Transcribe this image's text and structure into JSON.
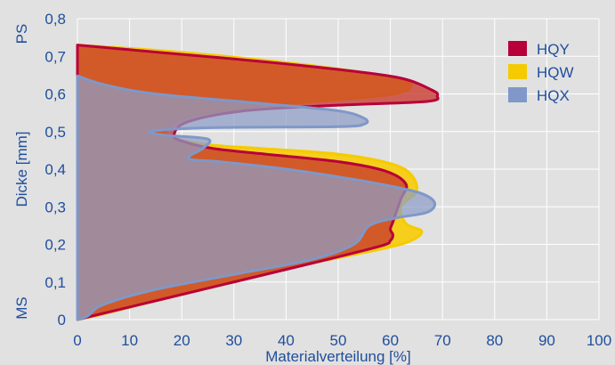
{
  "chart_data": {
    "type": "area",
    "title": "",
    "xlabel": "Materialverteilung [%]",
    "ylabel": "Dicke [mm]",
    "xlim": [
      0,
      100
    ],
    "ylim": [
      0,
      0.8
    ],
    "x_ticks": [
      "0",
      "10",
      "20",
      "30",
      "40",
      "50",
      "60",
      "70",
      "80",
      "90",
      "100"
    ],
    "y_ticks": [
      "0",
      "0,1",
      "0,2",
      "0,3",
      "0,4",
      "0,5",
      "0,6",
      "0,7",
      "0,8"
    ],
    "y_extra_labels": {
      "top": "PS",
      "bottom": "MS"
    },
    "grid": true,
    "legend_position": "top-right",
    "series": [
      {
        "name": "HQW",
        "color": "#f5cb00",
        "fill": "#f5cf1c",
        "points": [
          [
            0,
            0.73
          ],
          [
            16,
            0.715
          ],
          [
            32,
            0.695
          ],
          [
            48,
            0.67
          ],
          [
            60,
            0.645
          ],
          [
            64,
            0.622
          ],
          [
            60,
            0.598
          ],
          [
            45,
            0.58
          ],
          [
            30,
            0.56
          ],
          [
            20,
            0.535
          ],
          [
            17,
            0.505
          ],
          [
            18,
            0.485
          ],
          [
            25,
            0.465
          ],
          [
            35,
            0.455
          ],
          [
            50,
            0.44
          ],
          [
            60,
            0.415
          ],
          [
            64,
            0.385
          ],
          [
            65,
            0.34
          ],
          [
            62,
            0.3
          ],
          [
            63,
            0.255
          ],
          [
            66,
            0.235
          ],
          [
            64,
            0.21
          ],
          [
            59,
            0.19
          ],
          [
            45,
            0.15
          ],
          [
            30,
            0.1
          ],
          [
            15,
            0.05
          ],
          [
            5,
            0.015
          ],
          [
            0,
            0
          ]
        ]
      },
      {
        "name": "HQY",
        "color": "#b7003a",
        "fill": "#c8382c",
        "points": [
          [
            0,
            0.73
          ],
          [
            16,
            0.71
          ],
          [
            34,
            0.688
          ],
          [
            50,
            0.665
          ],
          [
            62,
            0.642
          ],
          [
            68,
            0.61
          ],
          [
            69,
            0.595
          ],
          [
            67,
            0.58
          ],
          [
            50,
            0.57
          ],
          [
            32,
            0.555
          ],
          [
            21,
            0.525
          ],
          [
            18.5,
            0.49
          ],
          [
            20,
            0.475
          ],
          [
            26,
            0.455
          ],
          [
            36,
            0.44
          ],
          [
            50,
            0.42
          ],
          [
            59,
            0.395
          ],
          [
            63,
            0.36
          ],
          [
            62,
            0.32
          ],
          [
            60.5,
            0.26
          ],
          [
            60,
            0.24
          ],
          [
            60.5,
            0.225
          ],
          [
            60,
            0.21
          ],
          [
            58,
            0.195
          ],
          [
            45,
            0.15
          ],
          [
            30,
            0.1
          ],
          [
            15,
            0.05
          ],
          [
            3,
            0.01
          ],
          [
            0,
            0
          ]
        ]
      },
      {
        "name": "HQX",
        "color": "#7f98c9",
        "fill": "#8e9dc6",
        "points": [
          [
            0,
            0.648
          ],
          [
            5,
            0.625
          ],
          [
            15,
            0.6
          ],
          [
            35,
            0.575
          ],
          [
            50,
            0.555
          ],
          [
            55,
            0.535
          ],
          [
            55,
            0.52
          ],
          [
            50,
            0.513
          ],
          [
            25,
            0.51
          ],
          [
            14,
            0.5
          ],
          [
            17,
            0.49
          ],
          [
            25,
            0.48
          ],
          [
            24,
            0.455
          ],
          [
            21.5,
            0.435
          ],
          [
            22,
            0.425
          ],
          [
            27,
            0.42
          ],
          [
            40,
            0.4
          ],
          [
            52,
            0.375
          ],
          [
            60,
            0.355
          ],
          [
            66,
            0.335
          ],
          [
            68.5,
            0.31
          ],
          [
            67,
            0.285
          ],
          [
            61,
            0.27
          ],
          [
            56,
            0.25
          ],
          [
            53,
            0.2
          ],
          [
            45,
            0.16
          ],
          [
            30,
            0.12
          ],
          [
            15,
            0.08
          ],
          [
            5,
            0.04
          ],
          [
            2,
            0.01
          ],
          [
            0,
            0
          ]
        ]
      }
    ],
    "legend": [
      {
        "name": "HQY",
        "color": "#b7003a"
      },
      {
        "name": "HQW",
        "color": "#f5cb00"
      },
      {
        "name": "HQX",
        "color": "#7f98c9"
      }
    ]
  }
}
